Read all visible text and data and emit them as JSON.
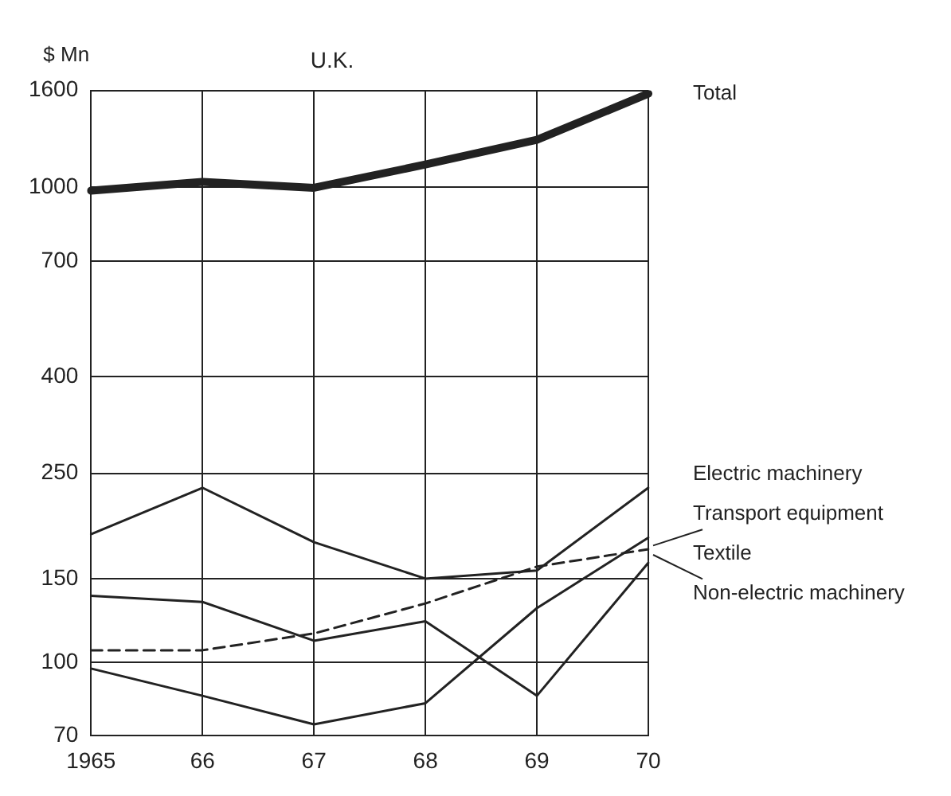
{
  "chart_data": {
    "type": "line",
    "title": "U.K.",
    "ylabel": "$ Mn",
    "categories": [
      "1965",
      "66",
      "67",
      "68",
      "69",
      "70"
    ],
    "series": [
      {
        "name": "Total",
        "color": "#222222",
        "values": [
          984,
          1027,
          998,
          1117,
          1259,
          1575
        ]
      },
      {
        "name": "Electric machinery",
        "color": "#222222",
        "values": [
          186,
          233,
          179,
          150,
          156,
          233
        ]
      },
      {
        "name": "Transport equipment",
        "color": "#222222",
        "values": [
          97,
          85,
          74,
          82,
          130,
          183
        ]
      },
      {
        "name": "Textile",
        "color": "#222222",
        "values": [
          106,
          106,
          115,
          133,
          159,
          173
        ],
        "line_style": "dashed"
      },
      {
        "name": "Non-electric machinery",
        "color": "#222222",
        "values": [
          138,
          134,
          111,
          122,
          85,
          162
        ]
      }
    ],
    "log": "y",
    "ylim": [
      70,
      1600
    ],
    "yticks": [
      70,
      100,
      150,
      250,
      400,
      700,
      1000,
      1600
    ],
    "grid": true,
    "legend": false,
    "marker": "none"
  }
}
